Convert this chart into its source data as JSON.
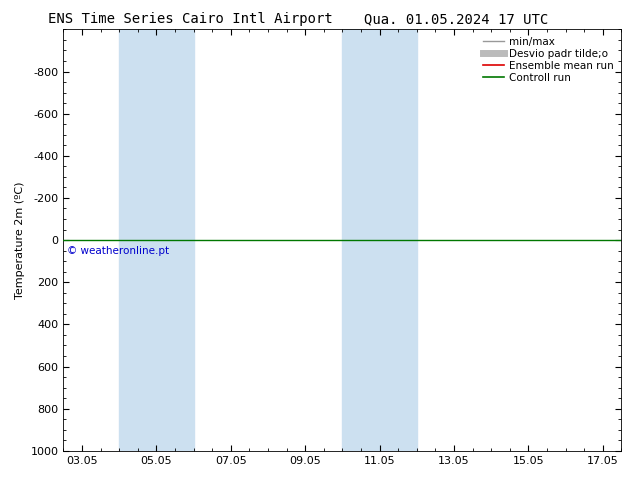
{
  "title_left": "ENS Time Series Cairo Intl Airport",
  "title_right": "Qua. 01.05.2024 17 UTC",
  "ylabel": "Temperature 2m (ºC)",
  "watermark": "© weatheronline.pt",
  "watermark_color": "#0000cc",
  "ylim_bottom": -1000,
  "ylim_top": 1000,
  "yticks": [
    -800,
    -600,
    -400,
    -200,
    0,
    200,
    400,
    600,
    800,
    1000
  ],
  "xtick_labels": [
    "03.05",
    "05.05",
    "07.05",
    "09.05",
    "11.05",
    "13.05",
    "15.05",
    "17.05"
  ],
  "xtick_positions": [
    0,
    2,
    4,
    6,
    8,
    10,
    12,
    14
  ],
  "xlim": [
    -0.5,
    14.5
  ],
  "background_color": "#ffffff",
  "shaded_bands": [
    {
      "x_start": 1.0,
      "x_end": 3.0
    },
    {
      "x_start": 7.0,
      "x_end": 9.0
    }
  ],
  "shaded_color": "#cce0f0",
  "horizontal_line_y": 0,
  "line_color_green": "#007700",
  "line_color_red": "#dd0000",
  "legend_entries": [
    {
      "label": "min/max",
      "color": "#999999",
      "lw": 1.0,
      "style": "-"
    },
    {
      "label": "Desvio padr tilde;o",
      "color": "#bbbbbb",
      "lw": 5,
      "style": "-"
    },
    {
      "label": "Ensemble mean run",
      "color": "#dd0000",
      "lw": 1.2,
      "style": "-"
    },
    {
      "label": "Controll run",
      "color": "#007700",
      "lw": 1.2,
      "style": "-"
    }
  ],
  "title_fontsize": 10,
  "axis_fontsize": 8,
  "tick_fontsize": 8,
  "legend_fontsize": 7.5
}
